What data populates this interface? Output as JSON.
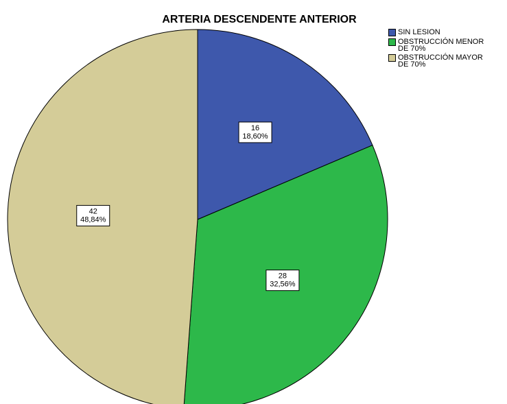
{
  "chart_data": {
    "type": "pie",
    "title": "ARTERIA DESCENDENTE ANTERIOR",
    "categories": [
      "SIN LESION",
      "OBSTRUCCIÓN MENOR DE 70%",
      "OBSTRUCCIÓN MAYOR DE 70%"
    ],
    "values": [
      16,
      28,
      42
    ],
    "percent_labels": [
      "18,60%",
      "32,56%",
      "48,84%"
    ],
    "colors": [
      "#3e58ac",
      "#2db84a",
      "#d4cc98"
    ],
    "legend": "upper right"
  }
}
